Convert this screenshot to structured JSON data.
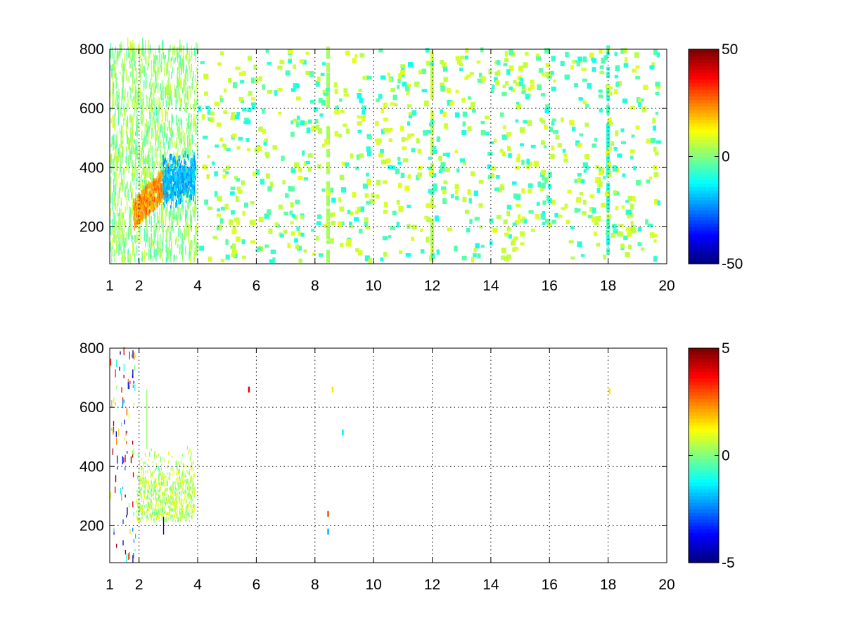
{
  "figure": {
    "background": "#ffffff"
  },
  "chart_data": [
    {
      "type": "heatmap",
      "title": "",
      "xlabel": "",
      "ylabel": "",
      "xlim": [
        1,
        20
      ],
      "ylim": [
        75,
        800
      ],
      "xticks": [
        1,
        2,
        4,
        6,
        8,
        10,
        12,
        14,
        16,
        18,
        20
      ],
      "xtick_labels": [
        "1",
        "2",
        "4",
        "6",
        "8",
        "10",
        "12",
        "14",
        "16",
        "18",
        "20"
      ],
      "yticks": [
        200,
        400,
        600,
        800
      ],
      "ytick_labels": [
        "200",
        "400",
        "600",
        "800"
      ],
      "grid": true,
      "colormap": "jet",
      "colorbar": {
        "min": -50,
        "max": 50,
        "ticks": [
          -50,
          0,
          50
        ],
        "tick_labels": [
          "-50",
          "0",
          "50"
        ]
      },
      "features": [
        {
          "x_range": [
            1.8,
            3.0
          ],
          "y_range": [
            200,
            420
          ],
          "value": 30,
          "note": "warm"
        },
        {
          "x_range": [
            2.8,
            3.9
          ],
          "y_range": [
            240,
            460
          ],
          "value": -25,
          "note": "cool"
        },
        {
          "x_range": [
            1.0,
            4.0
          ],
          "y_range": [
            75,
            800
          ],
          "value": 5,
          "note": "dense noise"
        },
        {
          "x": 8.45,
          "value": 5
        },
        {
          "x": 12.0,
          "value": 8
        },
        {
          "x": 18.0,
          "value": -10
        }
      ],
      "noise_level": 8,
      "density": "sparse beyond x=4"
    },
    {
      "type": "heatmap",
      "title": "",
      "xlabel": "",
      "ylabel": "",
      "xlim": [
        1,
        20
      ],
      "ylim": [
        75,
        800
      ],
      "xticks": [
        1,
        2,
        4,
        6,
        8,
        10,
        12,
        14,
        16,
        18,
        20
      ],
      "xtick_labels": [
        "1",
        "2",
        "4",
        "6",
        "8",
        "10",
        "12",
        "14",
        "16",
        "18",
        "20"
      ],
      "yticks": [
        200,
        400,
        600,
        800
      ],
      "ytick_labels": [
        "200",
        "400",
        "600",
        "800"
      ],
      "grid": true,
      "colormap": "jet",
      "colorbar": {
        "min": -5,
        "max": 5,
        "ticks": [
          -5,
          0,
          5
        ],
        "tick_labels": [
          "-5",
          "0",
          "5"
        ]
      },
      "features": [
        {
          "x_range": [
            1.9,
            3.9
          ],
          "y_range": [
            210,
            460
          ],
          "value": 0.5,
          "note": "main cluster"
        },
        {
          "x": 5.75,
          "y": 660,
          "value": 4
        },
        {
          "x": 8.45,
          "y": 240,
          "value": 3
        },
        {
          "x": 8.45,
          "y": 180,
          "value": -2
        },
        {
          "x": 8.6,
          "y": 660,
          "value": 1.5
        },
        {
          "x": 8.95,
          "y": 515,
          "value": -1.5
        },
        {
          "x": 18.05,
          "y": 655,
          "value": 1.5
        }
      ],
      "noise_level": 1,
      "density": "sparse"
    }
  ]
}
